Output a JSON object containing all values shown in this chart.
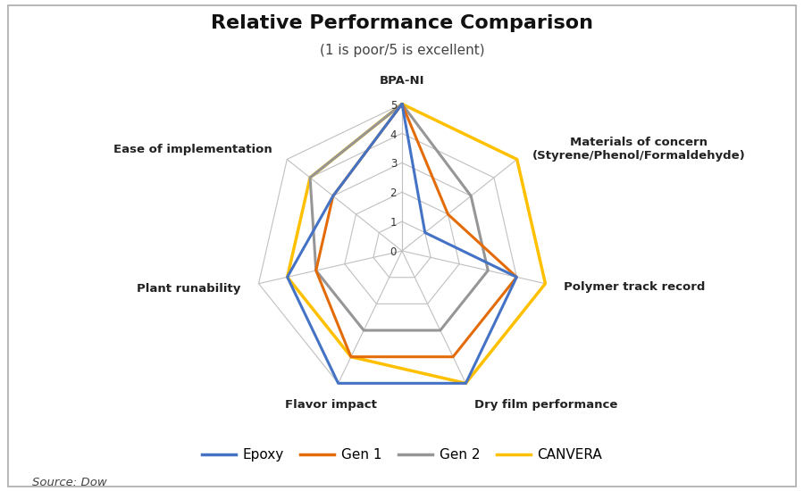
{
  "title": "Relative Performance Comparison",
  "subtitle": "(1 is poor/5 is excellent)",
  "categories": [
    "BPA-NI",
    "Materials of concern\n(Styrene/Phenol/Formaldehyde)",
    "Polymer track record",
    "Dry film performance",
    "Flavor impact",
    "Plant runability",
    "Ease of implementation"
  ],
  "series": {
    "Epoxy": [
      5,
      1,
      4,
      5,
      5,
      4,
      3
    ],
    "Gen 1": [
      5,
      2,
      4,
      4,
      4,
      3,
      3
    ],
    "Gen 2": [
      5,
      3,
      3,
      3,
      3,
      3,
      4
    ],
    "CANVERA": [
      5,
      5,
      5,
      5,
      4,
      4,
      4
    ]
  },
  "colors": {
    "Epoxy": "#4472C4",
    "Gen 1": "#E36C09",
    "Gen 2": "#969696",
    "CANVERA": "#FFC000"
  },
  "linewidths": {
    "Epoxy": 2.2,
    "Gen 1": 2.2,
    "Gen 2": 2.2,
    "CANVERA": 2.5
  },
  "r_max": 5,
  "r_ticks": [
    0,
    1,
    2,
    3,
    4,
    5
  ],
  "source_text": "Source: Dow",
  "background_color": "#ffffff",
  "border_color": "#aaaaaa"
}
